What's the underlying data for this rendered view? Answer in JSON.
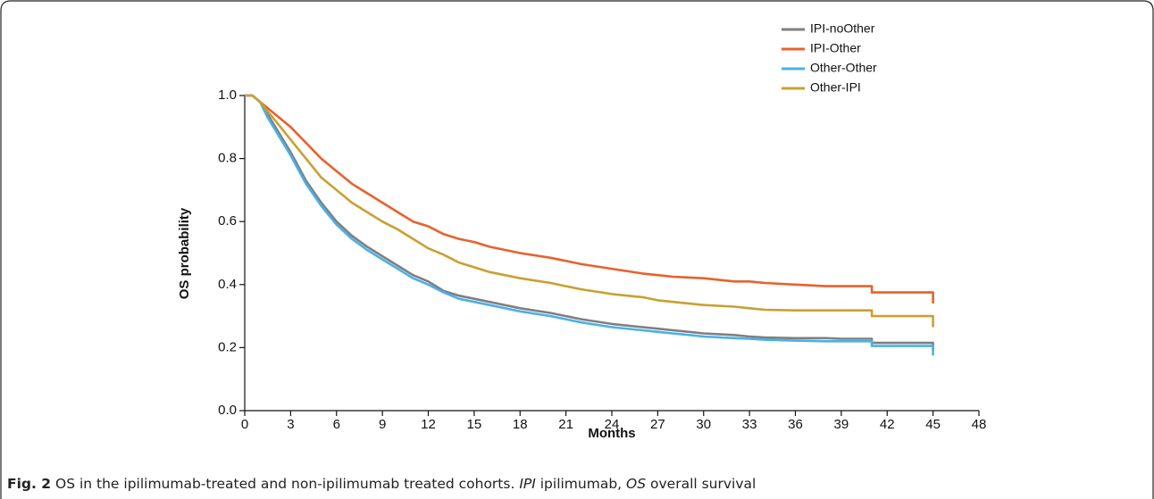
{
  "chart_data": {
    "type": "line",
    "xlabel": "Months",
    "ylabel": "OS probability",
    "x": [
      0,
      0.5,
      1,
      1.5,
      2,
      3,
      4,
      5,
      6,
      7,
      8,
      9,
      10,
      11,
      12,
      13,
      14,
      15,
      16,
      18,
      20,
      21,
      22,
      24,
      26,
      27,
      28,
      30,
      32,
      33,
      34,
      36,
      38,
      39,
      40,
      41,
      41,
      42,
      44,
      45,
      45
    ],
    "series": [
      {
        "name": "IPI-noOther",
        "color": "#7f7f7f",
        "values": [
          1,
          1,
          0.98,
          0.94,
          0.9,
          0.82,
          0.73,
          0.66,
          0.6,
          0.555,
          0.52,
          0.49,
          0.46,
          0.43,
          0.41,
          0.38,
          0.365,
          0.355,
          0.345,
          0.325,
          0.31,
          0.3,
          0.29,
          0.275,
          0.265,
          0.26,
          0.255,
          0.245,
          0.24,
          0.235,
          0.232,
          0.23,
          0.23,
          0.228,
          0.228,
          0.228,
          0.215,
          0.215,
          0.215,
          0.215,
          0.19
        ]
      },
      {
        "name": "IPI-Other",
        "color": "#e8612c",
        "values": [
          1,
          1,
          0.98,
          0.96,
          0.94,
          0.9,
          0.85,
          0.8,
          0.76,
          0.72,
          0.69,
          0.66,
          0.63,
          0.6,
          0.585,
          0.56,
          0.545,
          0.535,
          0.52,
          0.5,
          0.485,
          0.475,
          0.465,
          0.45,
          0.435,
          0.43,
          0.425,
          0.42,
          0.41,
          0.41,
          0.405,
          0.4,
          0.395,
          0.395,
          0.395,
          0.395,
          0.375,
          0.375,
          0.375,
          0.375,
          0.34
        ]
      },
      {
        "name": "Other-Other",
        "color": "#4ab0e8",
        "values": [
          1,
          1,
          0.98,
          0.93,
          0.89,
          0.81,
          0.72,
          0.65,
          0.59,
          0.545,
          0.51,
          0.48,
          0.45,
          0.42,
          0.4,
          0.375,
          0.355,
          0.345,
          0.335,
          0.315,
          0.3,
          0.29,
          0.28,
          0.265,
          0.255,
          0.25,
          0.245,
          0.235,
          0.23,
          0.228,
          0.225,
          0.222,
          0.22,
          0.22,
          0.22,
          0.22,
          0.205,
          0.205,
          0.205,
          0.205,
          0.175
        ]
      },
      {
        "name": "Other-IPI",
        "color": "#c9a030",
        "values": [
          1,
          1,
          0.98,
          0.95,
          0.92,
          0.86,
          0.8,
          0.74,
          0.7,
          0.66,
          0.63,
          0.6,
          0.575,
          0.545,
          0.515,
          0.495,
          0.47,
          0.455,
          0.44,
          0.42,
          0.405,
          0.395,
          0.385,
          0.37,
          0.36,
          0.35,
          0.345,
          0.335,
          0.33,
          0.325,
          0.32,
          0.318,
          0.318,
          0.318,
          0.318,
          0.318,
          0.3,
          0.3,
          0.3,
          0.3,
          0.265
        ]
      }
    ],
    "xlim": [
      0,
      48
    ],
    "xticks": [
      0,
      3,
      6,
      9,
      12,
      15,
      18,
      21,
      24,
      27,
      30,
      33,
      36,
      39,
      42,
      45,
      48
    ],
    "ylim": [
      0,
      1
    ],
    "yticks": [
      {
        "value": 0,
        "label": "0.0"
      },
      {
        "value": 0.2,
        "label": "0.2"
      },
      {
        "value": 0.4,
        "label": "0.4"
      },
      {
        "value": 0.6,
        "label": "0.6"
      },
      {
        "value": 0.8,
        "label": "0.8"
      },
      {
        "value": 1,
        "label": "1.0"
      }
    ],
    "legend": "upper-right",
    "caption": [
      {
        "text": "Fig. 2",
        "style": "bold"
      },
      {
        "text": " OS in the ipilimumab-treated and non-ipilimumab treated cohorts. ",
        "style": "normal"
      },
      {
        "text": "IPI",
        "style": "italic"
      },
      {
        "text": " ipilimumab, ",
        "style": "normal"
      },
      {
        "text": "OS",
        "style": "italic"
      },
      {
        "text": " overall survival",
        "style": "normal"
      }
    ]
  }
}
